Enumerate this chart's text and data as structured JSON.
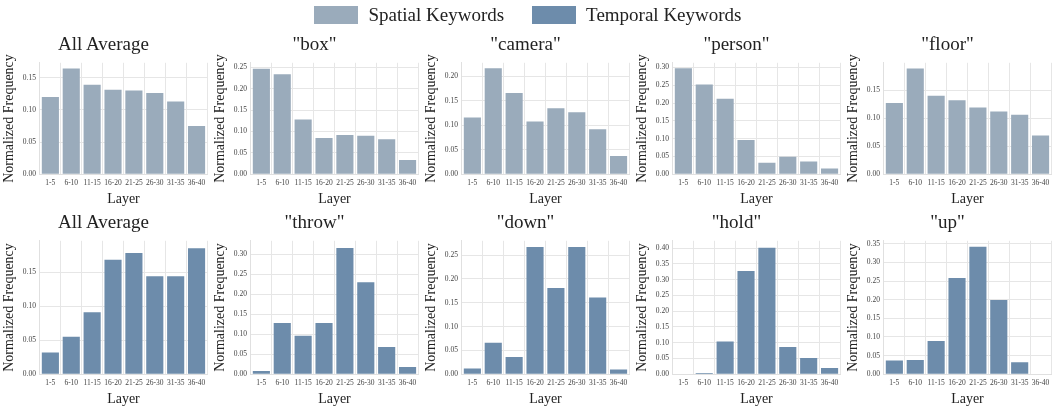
{
  "chart_data": [
    {
      "type": "bar",
      "title": "All Average",
      "xlabel": "Layer",
      "ylabel": "Normalized Frequency",
      "categories": [
        "1-5",
        "6-10",
        "11-15",
        "16-20",
        "21-25",
        "26-30",
        "31-35",
        "36-40"
      ],
      "series": [
        {
          "name": "Spatial Keywords",
          "color": "#9aabbb",
          "values": [
            0.12,
            0.164,
            0.139,
            0.131,
            0.13,
            0.126,
            0.113,
            0.075
          ]
        }
      ],
      "ylim": [
        0,
        0.173
      ],
      "yticks": [
        {
          "value": 0,
          "label": "0.00"
        },
        {
          "value": 0.05,
          "label": "0.05"
        },
        {
          "value": 0.1,
          "label": "0.10"
        },
        {
          "value": 0.15,
          "label": "0.15"
        }
      ],
      "grid": true,
      "legend": "top"
    },
    {
      "type": "bar",
      "title": "\"box\"",
      "xlabel": "Layer",
      "ylabel": "Normalized Frequency",
      "categories": [
        "1-5",
        "6-10",
        "11-15",
        "16-20",
        "21-25",
        "26-30",
        "31-35",
        "36-40"
      ],
      "series": [
        {
          "name": "Spatial Keywords",
          "color": "#9aabbb",
          "values": [
            0.247,
            0.234,
            0.128,
            0.085,
            0.092,
            0.09,
            0.082,
            0.033
          ]
        }
      ],
      "ylim": [
        0,
        0.261
      ],
      "yticks": [
        {
          "value": 0,
          "label": "0.00"
        },
        {
          "value": 0.05,
          "label": "0.05"
        },
        {
          "value": 0.1,
          "label": "0.10"
        },
        {
          "value": 0.15,
          "label": "0.15"
        },
        {
          "value": 0.2,
          "label": "0.20"
        },
        {
          "value": 0.25,
          "label": "0.25"
        }
      ],
      "grid": true,
      "legend": "top"
    },
    {
      "type": "bar",
      "title": "\"camera\"",
      "xlabel": "Layer",
      "ylabel": "Normalized Frequency",
      "categories": [
        "1-5",
        "6-10",
        "11-15",
        "16-20",
        "21-25",
        "26-30",
        "31-35",
        "36-40"
      ],
      "series": [
        {
          "name": "Spatial Keywords",
          "color": "#9aabbb",
          "values": [
            0.116,
            0.217,
            0.166,
            0.108,
            0.135,
            0.127,
            0.092,
            0.037
          ]
        }
      ],
      "ylim": [
        0,
        0.228
      ],
      "yticks": [
        {
          "value": 0,
          "label": "0.00"
        },
        {
          "value": 0.05,
          "label": "0.05"
        },
        {
          "value": 0.1,
          "label": "0.10"
        },
        {
          "value": 0.15,
          "label": "0.15"
        },
        {
          "value": 0.2,
          "label": "0.20"
        }
      ],
      "grid": true,
      "legend": "top"
    },
    {
      "type": "bar",
      "title": "\"person\"",
      "xlabel": "Layer",
      "ylabel": "Normalized Frequency",
      "categories": [
        "1-5",
        "6-10",
        "11-15",
        "16-20",
        "21-25",
        "26-30",
        "31-35",
        "36-40"
      ],
      "series": [
        {
          "name": "Spatial Keywords",
          "color": "#9aabbb",
          "values": [
            0.298,
            0.252,
            0.212,
            0.096,
            0.032,
            0.049,
            0.036,
            0.016
          ]
        }
      ],
      "ylim": [
        0,
        0.313
      ],
      "yticks": [
        {
          "value": 0,
          "label": "0.00"
        },
        {
          "value": 0.05,
          "label": "0.05"
        },
        {
          "value": 0.1,
          "label": "0.10"
        },
        {
          "value": 0.15,
          "label": "0.15"
        },
        {
          "value": 0.2,
          "label": "0.20"
        },
        {
          "value": 0.25,
          "label": "0.25"
        },
        {
          "value": 0.3,
          "label": "0.30"
        }
      ],
      "grid": true,
      "legend": "top"
    },
    {
      "type": "bar",
      "title": "\"floor\"",
      "xlabel": "Layer",
      "ylabel": "Normalized Frequency",
      "categories": [
        "1-5",
        "6-10",
        "11-15",
        "16-20",
        "21-25",
        "26-30",
        "31-35",
        "36-40"
      ],
      "series": [
        {
          "name": "Spatial Keywords",
          "color": "#9aabbb",
          "values": [
            0.127,
            0.189,
            0.14,
            0.132,
            0.119,
            0.112,
            0.106,
            0.069
          ]
        }
      ],
      "ylim": [
        0,
        0.199
      ],
      "yticks": [
        {
          "value": 0,
          "label": "0.00"
        },
        {
          "value": 0.05,
          "label": "0.05"
        },
        {
          "value": 0.1,
          "label": "0.10"
        },
        {
          "value": 0.15,
          "label": "0.15"
        }
      ],
      "grid": true,
      "legend": "top"
    },
    {
      "type": "bar",
      "title": "All Average",
      "xlabel": "Layer",
      "ylabel": "Normalized Frequency",
      "categories": [
        "1-5",
        "6-10",
        "11-15",
        "16-20",
        "21-25",
        "26-30",
        "31-35",
        "36-40"
      ],
      "series": [
        {
          "name": "Temporal Keywords",
          "color": "#6d8cab",
          "values": [
            0.032,
            0.055,
            0.091,
            0.168,
            0.178,
            0.144,
            0.144,
            0.185
          ]
        }
      ],
      "ylim": [
        0,
        0.196
      ],
      "yticks": [
        {
          "value": 0,
          "label": "0.00"
        },
        {
          "value": 0.05,
          "label": "0.05"
        },
        {
          "value": 0.1,
          "label": "0.10"
        },
        {
          "value": 0.15,
          "label": "0.15"
        }
      ],
      "grid": true,
      "legend": "top"
    },
    {
      "type": "bar",
      "title": "\"throw\"",
      "xlabel": "Layer",
      "ylabel": "Normalized Frequency",
      "categories": [
        "1-5",
        "6-10",
        "11-15",
        "16-20",
        "21-25",
        "26-30",
        "31-35",
        "36-40"
      ],
      "series": [
        {
          "name": "Temporal Keywords",
          "color": "#6d8cab",
          "values": [
            0.008,
            0.128,
            0.096,
            0.128,
            0.316,
            0.23,
            0.068,
            0.018
          ]
        }
      ],
      "ylim": [
        0,
        0.334
      ],
      "yticks": [
        {
          "value": 0,
          "label": "0.00"
        },
        {
          "value": 0.05,
          "label": "0.05"
        },
        {
          "value": 0.1,
          "label": "0.10"
        },
        {
          "value": 0.15,
          "label": "0.15"
        },
        {
          "value": 0.2,
          "label": "0.20"
        },
        {
          "value": 0.25,
          "label": "0.25"
        },
        {
          "value": 0.3,
          "label": "0.30"
        }
      ],
      "grid": true,
      "legend": "top"
    },
    {
      "type": "bar",
      "title": "\"down\"",
      "xlabel": "Layer",
      "ylabel": "Normalized Frequency",
      "categories": [
        "1-5",
        "6-10",
        "11-15",
        "16-20",
        "21-25",
        "26-30",
        "31-35",
        "36-40"
      ],
      "series": [
        {
          "name": "Temporal Keywords",
          "color": "#6d8cab",
          "values": [
            0.012,
            0.066,
            0.036,
            0.267,
            0.181,
            0.267,
            0.161,
            0.01
          ]
        }
      ],
      "ylim": [
        0,
        0.28
      ],
      "yticks": [
        {
          "value": 0,
          "label": "0.00"
        },
        {
          "value": 0.05,
          "label": "0.05"
        },
        {
          "value": 0.1,
          "label": "0.10"
        },
        {
          "value": 0.15,
          "label": "0.15"
        },
        {
          "value": 0.2,
          "label": "0.20"
        },
        {
          "value": 0.25,
          "label": "0.25"
        }
      ],
      "grid": true,
      "legend": "top"
    },
    {
      "type": "bar",
      "title": "\"hold\"",
      "xlabel": "Layer",
      "ylabel": "Normalized Frequency",
      "categories": [
        "1-5",
        "6-10",
        "11-15",
        "16-20",
        "21-25",
        "26-30",
        "31-35",
        "36-40"
      ],
      "series": [
        {
          "name": "Temporal Keywords",
          "color": "#6d8cab",
          "values": [
            0,
            0.004,
            0.104,
            0.327,
            0.401,
            0.086,
            0.051,
            0.02
          ]
        }
      ],
      "ylim": [
        0,
        0.423
      ],
      "yticks": [
        {
          "value": 0,
          "label": "0.00"
        },
        {
          "value": 0.05,
          "label": "0.05"
        },
        {
          "value": 0.1,
          "label": "0.10"
        },
        {
          "value": 0.15,
          "label": "0.15"
        },
        {
          "value": 0.2,
          "label": "0.20"
        },
        {
          "value": 0.25,
          "label": "0.25"
        },
        {
          "value": 0.3,
          "label": "0.30"
        },
        {
          "value": 0.35,
          "label": "0.35"
        },
        {
          "value": 0.4,
          "label": "0.40"
        }
      ],
      "grid": true,
      "legend": "top"
    },
    {
      "type": "bar",
      "title": "\"up\"",
      "xlabel": "Layer",
      "ylabel": "Normalized Frequency",
      "categories": [
        "1-5",
        "6-10",
        "11-15",
        "16-20",
        "21-25",
        "26-30",
        "31-35",
        "36-40"
      ],
      "series": [
        {
          "name": "Temporal Keywords",
          "color": "#6d8cab",
          "values": [
            0.037,
            0.038,
            0.089,
            0.258,
            0.342,
            0.199,
            0.032,
            0
          ]
        }
      ],
      "ylim": [
        0,
        0.358
      ],
      "yticks": [
        {
          "value": 0,
          "label": "0.00"
        },
        {
          "value": 0.05,
          "label": "0.05"
        },
        {
          "value": 0.1,
          "label": "0.10"
        },
        {
          "value": 0.15,
          "label": "0.15"
        },
        {
          "value": 0.2,
          "label": "0.20"
        },
        {
          "value": 0.25,
          "label": "0.25"
        },
        {
          "value": 0.3,
          "label": "0.30"
        },
        {
          "value": 0.35,
          "label": "0.35"
        }
      ],
      "grid": true,
      "legend": "top"
    }
  ]
}
